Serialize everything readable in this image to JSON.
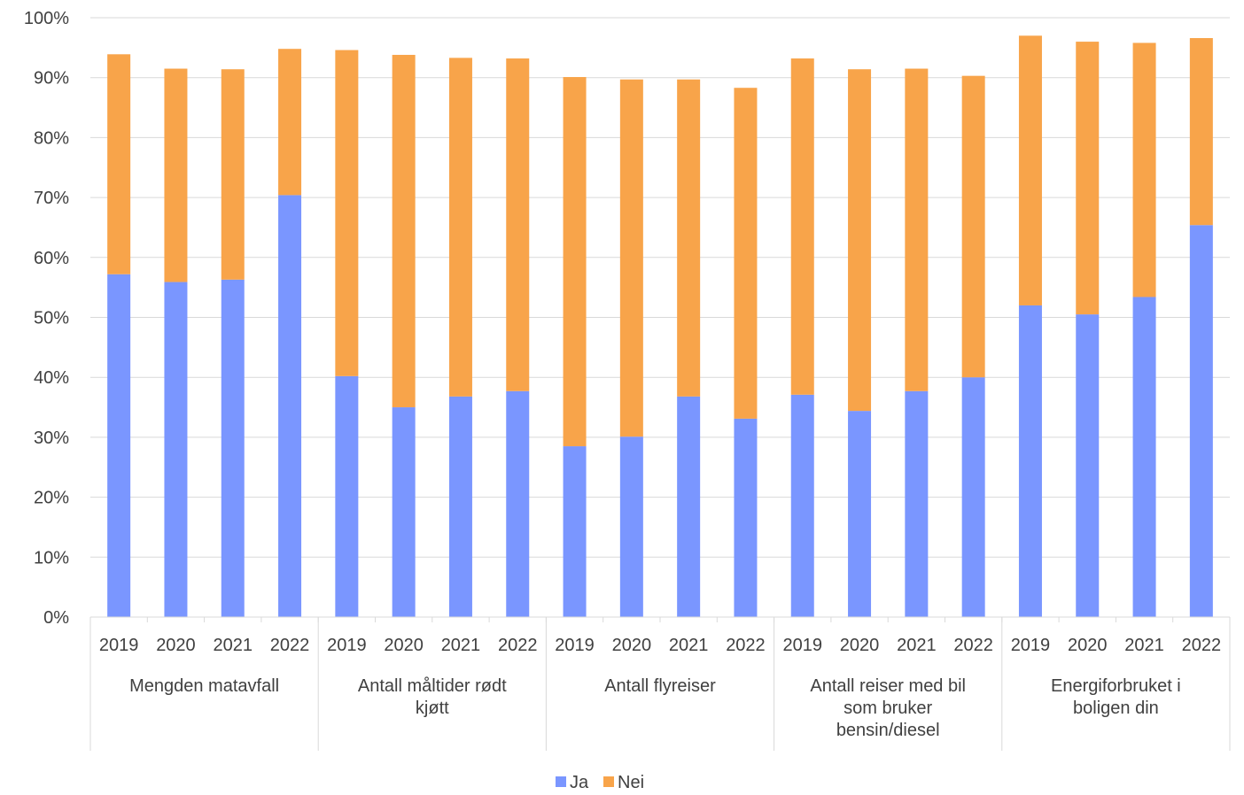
{
  "chart_data": {
    "type": "bar",
    "stacked": true,
    "groups": [
      {
        "label_lines": [
          "Mengden matavfall"
        ],
        "years": [
          "2019",
          "2020",
          "2021",
          "2022"
        ],
        "ja": [
          57.2,
          55.9,
          56.3,
          70.4
        ],
        "nei": [
          36.7,
          35.6,
          35.1,
          24.4
        ]
      },
      {
        "label_lines": [
          "Antall måltider rødt",
          "kjøtt"
        ],
        "years": [
          "2019",
          "2020",
          "2021",
          "2022"
        ],
        "ja": [
          40.2,
          35.0,
          36.8,
          37.7
        ],
        "nei": [
          54.4,
          58.8,
          56.5,
          55.5
        ]
      },
      {
        "label_lines": [
          "Antall flyreiser"
        ],
        "years": [
          "2019",
          "2020",
          "2021",
          "2022"
        ],
        "ja": [
          28.5,
          30.1,
          36.8,
          33.1
        ],
        "nei": [
          61.6,
          59.6,
          52.9,
          55.2
        ]
      },
      {
        "label_lines": [
          "Antall reiser med bil",
          "som bruker",
          "bensin/diesel"
        ],
        "years": [
          "2019",
          "2020",
          "2021",
          "2022"
        ],
        "ja": [
          37.1,
          34.4,
          37.7,
          40.0
        ],
        "nei": [
          56.1,
          57.0,
          53.8,
          50.3
        ]
      },
      {
        "label_lines": [
          "Energiforbruket i",
          "boligen din"
        ],
        "years": [
          "2019",
          "2020",
          "2021",
          "2022"
        ],
        "ja": [
          52.0,
          50.5,
          53.4,
          65.4
        ],
        "nei": [
          45.0,
          45.5,
          42.4,
          31.2
        ]
      }
    ],
    "series": [
      {
        "name": "Ja",
        "color": "#7A96FF"
      },
      {
        "name": "Nei",
        "color": "#F8A44A"
      }
    ],
    "ylim": [
      0,
      100
    ],
    "yticks": [
      0,
      10,
      20,
      30,
      40,
      50,
      60,
      70,
      80,
      90,
      100
    ],
    "ytick_suffix": "%",
    "grid": true,
    "legend_position": "bottom"
  }
}
